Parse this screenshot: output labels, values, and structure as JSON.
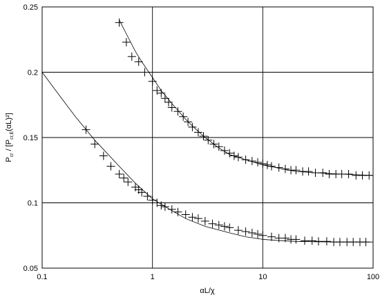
{
  "chart_data": {
    "type": "scatter",
    "title": "",
    "xlabel": "αL/χ",
    "ylabel_main": "P",
    "ylabel_sub1": "cr",
    "ylabel_mid": " / [P",
    "ylabel_sub2": "cr,E",
    "ylabel_end": "(αL)²]",
    "x_scale": "log",
    "xlim": [
      0.1,
      100
    ],
    "ylim": [
      0.05,
      0.25
    ],
    "x_ticks": [
      0.1,
      1,
      10,
      100
    ],
    "x_tick_labels": [
      "0.1",
      "1",
      "10",
      "100"
    ],
    "y_ticks": [
      0.05,
      0.1,
      0.15,
      0.2,
      0.25
    ],
    "y_tick_labels": [
      "0.05",
      "0.1",
      "0.15",
      "0.2",
      "0.25"
    ],
    "grid": true,
    "legend": "none",
    "lines": [
      {
        "x": [
          0.1,
          0.15,
          0.2,
          0.3,
          0.5,
          0.7,
          1,
          1.5,
          2,
          3,
          5,
          7,
          10,
          15,
          20,
          30,
          50,
          70,
          100
        ],
        "y": [
          0.2,
          0.18,
          0.166,
          0.148,
          0.128,
          0.115,
          0.103,
          0.094,
          0.088,
          0.082,
          0.077,
          0.074,
          0.072,
          0.071,
          0.0705,
          0.0702,
          0.07,
          0.07,
          0.07
        ]
      },
      {
        "x": [
          0.5,
          0.6,
          0.7,
          0.8,
          1,
          1.2,
          1.5,
          2,
          2.5,
          3,
          4,
          5,
          7,
          10,
          15,
          20,
          30,
          50,
          70,
          100
        ],
        "y": [
          0.24,
          0.227,
          0.216,
          0.208,
          0.196,
          0.186,
          0.176,
          0.164,
          0.156,
          0.15,
          0.142,
          0.137,
          0.133,
          0.129,
          0.126,
          0.124,
          0.123,
          0.122,
          0.1215,
          0.121
        ]
      }
    ],
    "series": [
      {
        "points": [
          [
            0.25,
            0.156
          ],
          [
            0.3,
            0.145
          ],
          [
            0.36,
            0.136
          ],
          [
            0.42,
            0.128
          ],
          [
            0.5,
            0.122
          ],
          [
            0.55,
            0.119
          ],
          [
            0.6,
            0.116
          ],
          [
            0.7,
            0.112
          ],
          [
            0.75,
            0.11
          ],
          [
            0.8,
            0.108
          ],
          [
            0.9,
            0.105
          ],
          [
            1.0,
            0.102
          ],
          [
            1.1,
            0.1
          ],
          [
            1.2,
            0.098
          ],
          [
            1.3,
            0.097
          ],
          [
            1.5,
            0.095
          ],
          [
            1.7,
            0.093
          ],
          [
            2.0,
            0.091
          ],
          [
            2.3,
            0.089
          ],
          [
            2.6,
            0.088
          ],
          [
            3.0,
            0.086
          ],
          [
            3.5,
            0.084
          ],
          [
            4.0,
            0.083
          ],
          [
            4.5,
            0.082
          ],
          [
            5.0,
            0.081
          ],
          [
            6.0,
            0.079
          ],
          [
            7.0,
            0.078
          ],
          [
            8.0,
            0.077
          ],
          [
            9.0,
            0.076
          ],
          [
            10,
            0.075
          ],
          [
            12,
            0.074
          ],
          [
            14,
            0.073
          ],
          [
            16,
            0.073
          ],
          [
            18,
            0.072
          ],
          [
            20,
            0.072
          ],
          [
            24,
            0.071
          ],
          [
            28,
            0.071
          ],
          [
            32,
            0.0705
          ],
          [
            38,
            0.0705
          ],
          [
            44,
            0.07
          ],
          [
            50,
            0.07
          ],
          [
            58,
            0.07
          ],
          [
            66,
            0.07
          ],
          [
            76,
            0.07
          ],
          [
            86,
            0.07
          ]
        ]
      },
      {
        "points": [
          [
            0.5,
            0.238
          ],
          [
            0.58,
            0.223
          ],
          [
            0.65,
            0.212
          ],
          [
            0.75,
            0.208
          ],
          [
            0.85,
            0.2
          ],
          [
            1.0,
            0.193
          ],
          [
            1.1,
            0.186
          ],
          [
            1.2,
            0.184
          ],
          [
            1.3,
            0.18
          ],
          [
            1.4,
            0.177
          ],
          [
            1.5,
            0.173
          ],
          [
            1.7,
            0.17
          ],
          [
            1.9,
            0.166
          ],
          [
            2.1,
            0.162
          ],
          [
            2.3,
            0.158
          ],
          [
            2.6,
            0.154
          ],
          [
            2.9,
            0.151
          ],
          [
            3.2,
            0.148
          ],
          [
            3.6,
            0.145
          ],
          [
            4.0,
            0.143
          ],
          [
            4.5,
            0.14
          ],
          [
            5.0,
            0.138
          ],
          [
            5.5,
            0.136
          ],
          [
            6.0,
            0.135
          ],
          [
            7.0,
            0.133
          ],
          [
            8.0,
            0.132
          ],
          [
            9.0,
            0.131
          ],
          [
            10,
            0.13
          ],
          [
            11,
            0.129
          ],
          [
            12,
            0.128
          ],
          [
            14,
            0.127
          ],
          [
            16,
            0.126
          ],
          [
            18,
            0.125
          ],
          [
            20,
            0.125
          ],
          [
            23,
            0.124
          ],
          [
            26,
            0.124
          ],
          [
            30,
            0.123
          ],
          [
            35,
            0.123
          ],
          [
            40,
            0.122
          ],
          [
            46,
            0.122
          ],
          [
            52,
            0.122
          ],
          [
            60,
            0.122
          ],
          [
            70,
            0.121
          ],
          [
            80,
            0.121
          ],
          [
            92,
            0.121
          ]
        ]
      }
    ]
  }
}
